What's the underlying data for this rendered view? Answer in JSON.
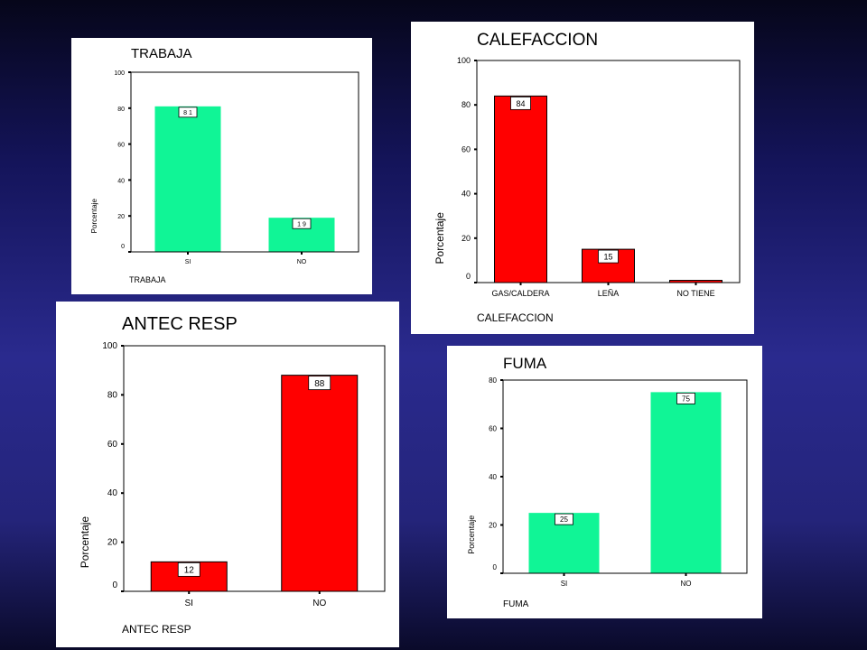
{
  "chart_data": [
    {
      "type": "bar",
      "title": "TRABAJA",
      "xlabel": "TRABAJA",
      "ylabel": "Porcentaje",
      "categories": [
        "SI",
        "NO"
      ],
      "values": [
        81,
        19
      ],
      "data_labels": [
        "8 1",
        "1 9"
      ],
      "yticks": [
        0,
        20,
        40,
        60,
        80,
        100
      ],
      "ylim": [
        0,
        100
      ],
      "bar_color": "#10f596",
      "grid": false
    },
    {
      "type": "bar",
      "title": "CALEFACCION",
      "xlabel": "CALEFACCION",
      "ylabel": "Porcentaje",
      "categories": [
        "GAS/CALDERA",
        "LEÑA",
        "NO TIENE"
      ],
      "values": [
        84,
        15,
        1
      ],
      "data_labels": [
        "84",
        "15",
        ""
      ],
      "yticks": [
        0,
        20,
        40,
        60,
        80,
        100
      ],
      "ylim": [
        0,
        100
      ],
      "bar_color": "#ff0000",
      "grid": false
    },
    {
      "type": "bar",
      "title": "ANTEC RESP",
      "xlabel": "ANTEC RESP",
      "ylabel": "Porcentaje",
      "categories": [
        "SI",
        "NO"
      ],
      "values": [
        12,
        88
      ],
      "data_labels": [
        "12",
        "88"
      ],
      "yticks": [
        0,
        20,
        40,
        60,
        80,
        100
      ],
      "ylim": [
        0,
        100
      ],
      "bar_color": "#ff0000",
      "grid": false
    },
    {
      "type": "bar",
      "title": "FUMA",
      "xlabel": "FUMA",
      "ylabel": "Porcentaje",
      "categories": [
        "SI",
        "NO"
      ],
      "values": [
        25,
        75
      ],
      "data_labels": [
        "25",
        "75"
      ],
      "yticks": [
        0,
        20,
        40,
        60,
        80
      ],
      "ylim": [
        0,
        80
      ],
      "bar_color": "#10f596",
      "grid": false
    }
  ]
}
